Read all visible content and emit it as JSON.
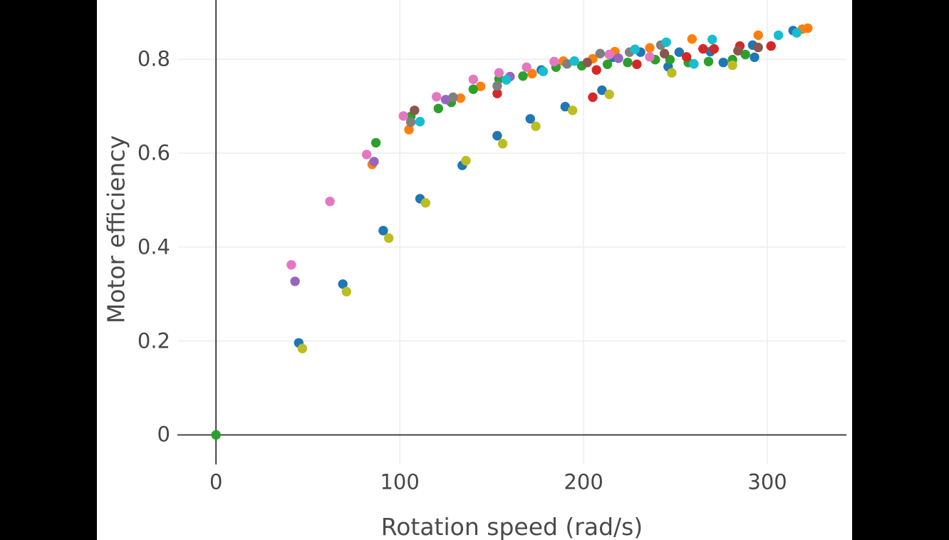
{
  "window": {
    "letterbox_color": "#000000",
    "plot_background": "#ffffff"
  },
  "chart_data": {
    "type": "scatter",
    "title": "",
    "xlabel": "Rotation speed (rad/s)",
    "ylabel": "Motor efficiency",
    "x_ticks": [
      0,
      100,
      200,
      300
    ],
    "y_ticks": [
      0,
      0.2,
      0.4,
      0.6,
      0.8
    ],
    "xlim": [
      -21,
      343
    ],
    "ylim": [
      -0.063,
      0.926
    ],
    "grid": true,
    "grid_color": "#ececec",
    "zeroline_color": "#444444",
    "legend_position": "none",
    "series": [
      {
        "name": "blue",
        "color": "#1f77b4",
        "points": [
          [
            45,
            0.196
          ],
          [
            69,
            0.321
          ],
          [
            91,
            0.435
          ],
          [
            111,
            0.503
          ],
          [
            134,
            0.574
          ],
          [
            153,
            0.637
          ],
          [
            171,
            0.673
          ],
          [
            177,
            0.777
          ],
          [
            190,
            0.699
          ],
          [
            210,
            0.734
          ],
          [
            216,
            0.804
          ],
          [
            231,
            0.815
          ],
          [
            246,
            0.784
          ],
          [
            252,
            0.815
          ],
          [
            269,
            0.816
          ],
          [
            276,
            0.793
          ],
          [
            292,
            0.83
          ],
          [
            293,
            0.804
          ],
          [
            314,
            0.861
          ]
        ]
      },
      {
        "name": "orange",
        "color": "#ff7f0e",
        "points": [
          [
            85,
            0.576
          ],
          [
            105,
            0.65
          ],
          [
            133,
            0.717
          ],
          [
            144,
            0.742
          ],
          [
            172,
            0.769
          ],
          [
            189,
            0.796
          ],
          [
            205,
            0.801
          ],
          [
            217,
            0.816
          ],
          [
            236,
            0.824
          ],
          [
            259,
            0.843
          ],
          [
            295,
            0.851
          ],
          [
            319,
            0.864
          ],
          [
            322,
            0.866
          ]
        ]
      },
      {
        "name": "green",
        "color": "#2ca02c",
        "points": [
          [
            0,
            0.0
          ],
          [
            87,
            0.622
          ],
          [
            106,
            0.678
          ],
          [
            121,
            0.695
          ],
          [
            128,
            0.708
          ],
          [
            140,
            0.736
          ],
          [
            154,
            0.758
          ],
          [
            167,
            0.764
          ],
          [
            185,
            0.783
          ],
          [
            199,
            0.786
          ],
          [
            213,
            0.789
          ],
          [
            224,
            0.793
          ],
          [
            239,
            0.799
          ],
          [
            247,
            0.799
          ],
          [
            257,
            0.793
          ],
          [
            268,
            0.795
          ],
          [
            281,
            0.799
          ],
          [
            288,
            0.81
          ]
        ]
      },
      {
        "name": "red",
        "color": "#d62728",
        "points": [
          [
            153,
            0.727
          ],
          [
            205,
            0.719
          ],
          [
            207,
            0.777
          ],
          [
            229,
            0.789
          ],
          [
            256,
            0.805
          ],
          [
            265,
            0.822
          ],
          [
            271,
            0.822
          ],
          [
            285,
            0.828
          ],
          [
            302,
            0.828
          ]
        ]
      },
      {
        "name": "purple",
        "color": "#9467bd",
        "points": [
          [
            43,
            0.327
          ],
          [
            86,
            0.582
          ],
          [
            125,
            0.714
          ],
          [
            160,
            0.763
          ],
          [
            219,
            0.802
          ]
        ]
      },
      {
        "name": "brown",
        "color": "#8c564b",
        "points": [
          [
            108,
            0.691
          ],
          [
            202,
            0.793
          ],
          [
            244,
            0.812
          ],
          [
            284,
            0.818
          ],
          [
            295,
            0.825
          ]
        ]
      },
      {
        "name": "pink",
        "color": "#e377c2",
        "points": [
          [
            41,
            0.362
          ],
          [
            62,
            0.497
          ],
          [
            82,
            0.597
          ],
          [
            102,
            0.679
          ],
          [
            120,
            0.72
          ],
          [
            140,
            0.757
          ],
          [
            154,
            0.771
          ],
          [
            169,
            0.783
          ],
          [
            184,
            0.795
          ],
          [
            214,
            0.81
          ],
          [
            236,
            0.805
          ]
        ]
      },
      {
        "name": "gray",
        "color": "#7f7f7f",
        "points": [
          [
            106,
            0.666
          ],
          [
            129,
            0.719
          ],
          [
            153,
            0.743
          ],
          [
            191,
            0.79
          ],
          [
            209,
            0.812
          ],
          [
            225,
            0.815
          ],
          [
            242,
            0.83
          ]
        ]
      },
      {
        "name": "olive",
        "color": "#bcbd22",
        "points": [
          [
            47,
            0.184
          ],
          [
            71,
            0.305
          ],
          [
            94,
            0.419
          ],
          [
            114,
            0.494
          ],
          [
            136,
            0.584
          ],
          [
            156,
            0.62
          ],
          [
            174,
            0.657
          ],
          [
            194,
            0.691
          ],
          [
            214,
            0.725
          ],
          [
            248,
            0.771
          ],
          [
            281,
            0.787
          ]
        ]
      },
      {
        "name": "cyan",
        "color": "#17becf",
        "points": [
          [
            111,
            0.667
          ],
          [
            158,
            0.756
          ],
          [
            178,
            0.774
          ],
          [
            195,
            0.796
          ],
          [
            228,
            0.821
          ],
          [
            245,
            0.836
          ],
          [
            260,
            0.79
          ],
          [
            270,
            0.842
          ],
          [
            306,
            0.851
          ],
          [
            316,
            0.856
          ]
        ]
      }
    ]
  }
}
